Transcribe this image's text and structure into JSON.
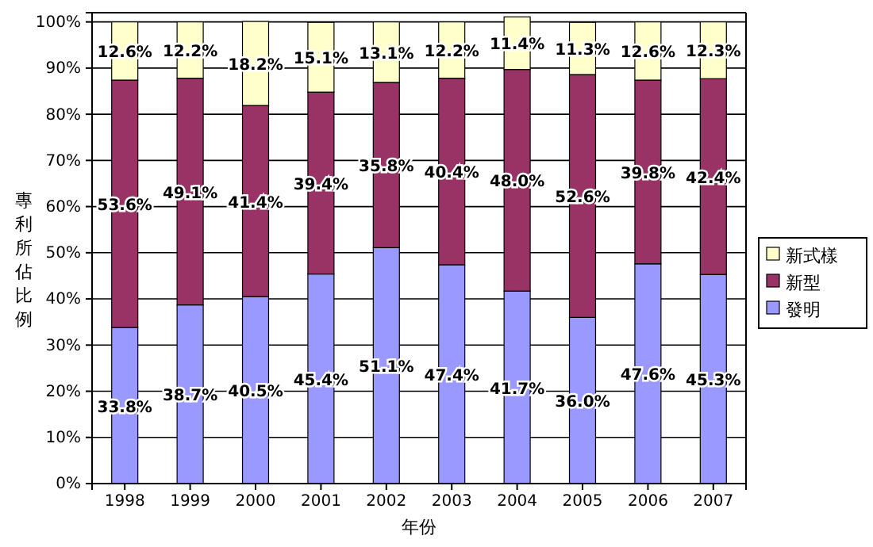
{
  "chart_data": {
    "type": "bar",
    "stacked": true,
    "xlabel": "年份",
    "ylabel": "專利所佔比例",
    "categories": [
      "1998",
      "1999",
      "2000",
      "2001",
      "2002",
      "2003",
      "2004",
      "2005",
      "2006",
      "2007"
    ],
    "series": [
      {
        "name": "發明",
        "color": "#9999ff",
        "values": [
          33.8,
          38.7,
          40.5,
          45.4,
          51.1,
          47.4,
          41.7,
          36.0,
          47.6,
          45.3
        ],
        "value_labels": [
          "33.8%",
          "38.7%",
          "40.5%",
          "45.4%",
          "51.1%",
          "47.4%",
          "41.7%",
          "36.0%",
          "47.6%",
          "45.3%"
        ]
      },
      {
        "name": "新型",
        "color": "#993366",
        "values": [
          53.6,
          49.1,
          41.4,
          39.4,
          35.8,
          40.4,
          48.0,
          52.6,
          39.8,
          42.4
        ],
        "value_labels": [
          "53.6%",
          "49.1%",
          "41.4%",
          "39.4%",
          "35.8%",
          "40.4%",
          "48.0%",
          "52.6%",
          "39.8%",
          "42.4%"
        ]
      },
      {
        "name": "新式樣",
        "color": "#ffffcc",
        "values": [
          12.6,
          12.2,
          18.2,
          15.1,
          13.1,
          12.2,
          11.4,
          11.3,
          12.6,
          12.3
        ],
        "value_labels": [
          "12.6%",
          "12.2%",
          "18.2%",
          "15.1%",
          "13.1%",
          "12.2%",
          "11.4%",
          "11.3%",
          "12.6%",
          "12.3%"
        ]
      }
    ],
    "ylim": [
      0,
      102
    ],
    "yticks": [
      {
        "value": 0,
        "label": "0%"
      },
      {
        "value": 10,
        "label": "10%"
      },
      {
        "value": 20,
        "label": "20%"
      },
      {
        "value": 30,
        "label": "30%"
      },
      {
        "value": 40,
        "label": "40%"
      },
      {
        "value": 50,
        "label": "50%"
      },
      {
        "value": 60,
        "label": "60%"
      },
      {
        "value": 70,
        "label": "70%"
      },
      {
        "value": 80,
        "label": "80%"
      },
      {
        "value": 90,
        "label": "90%"
      },
      {
        "value": 100,
        "label": "100%"
      }
    ],
    "grid": "y",
    "legend": "right"
  }
}
